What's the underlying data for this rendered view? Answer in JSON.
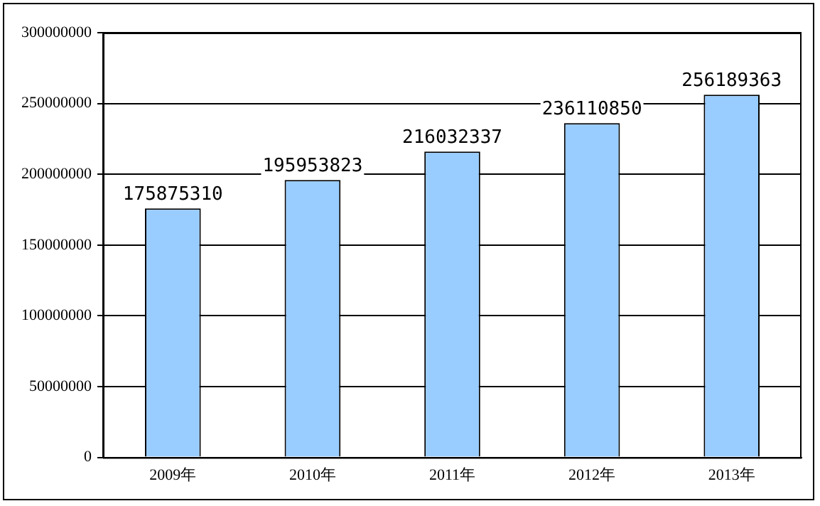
{
  "chart_data": {
    "type": "bar",
    "categories": [
      "2009年",
      "2010年",
      "2011年",
      "2012年",
      "2013年"
    ],
    "values": [
      175875310,
      195953823,
      216032337,
      236110850,
      256189363
    ],
    "color": "#99ccff",
    "ylim": [
      0,
      300000000
    ],
    "yticks": [
      0,
      50000000,
      100000000,
      150000000,
      200000000,
      250000000,
      300000000
    ],
    "grid": "y",
    "data_labels": true
  }
}
